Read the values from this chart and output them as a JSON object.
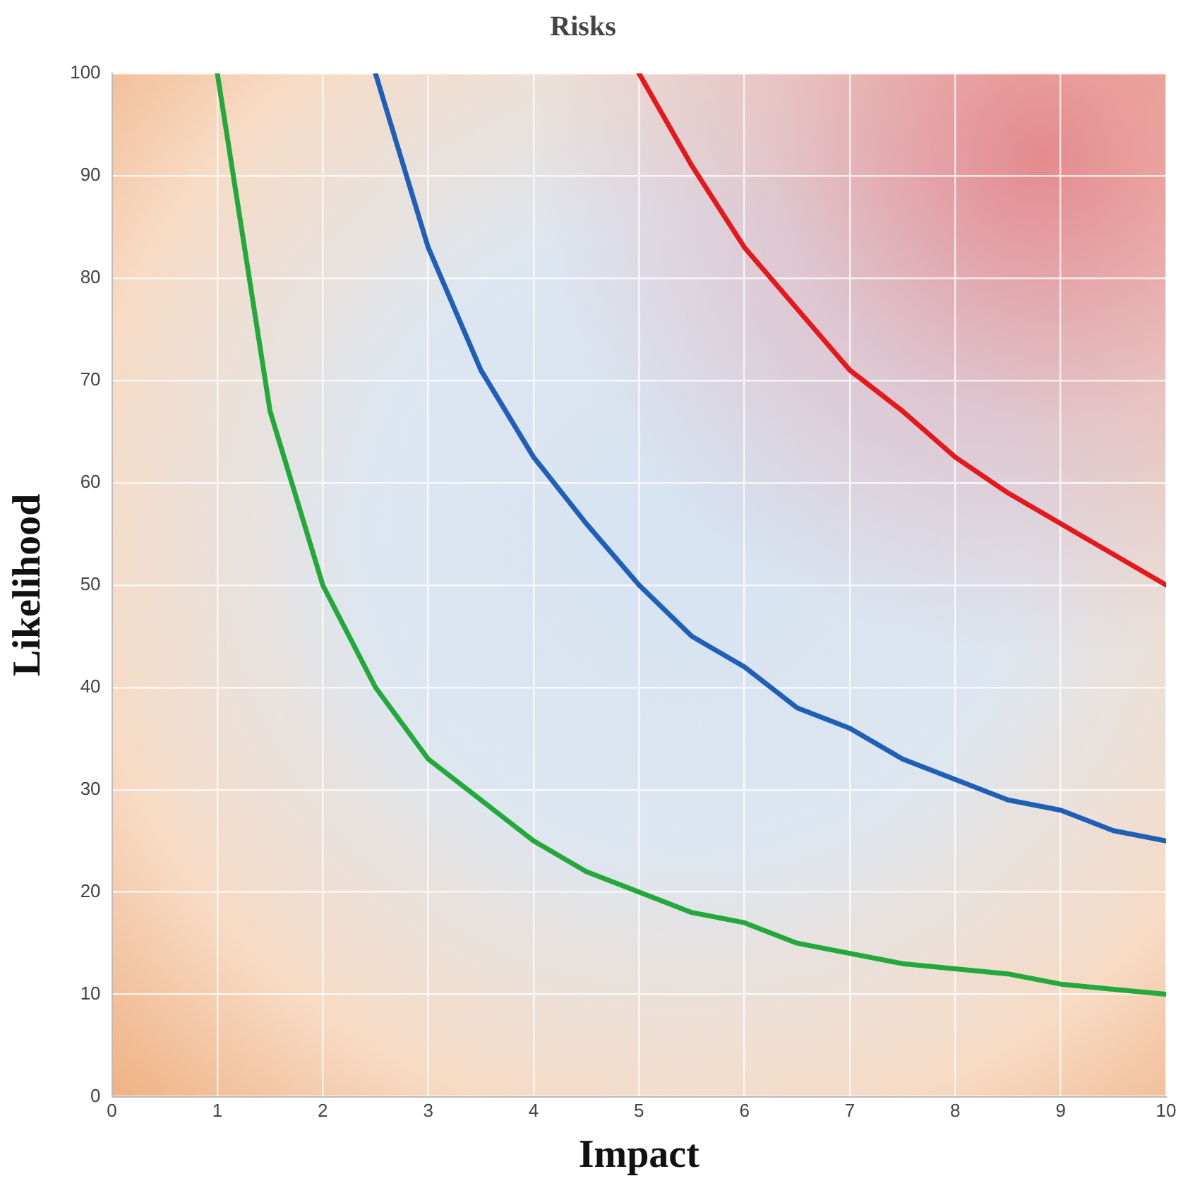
{
  "chart_data": {
    "type": "line",
    "title": "Risks",
    "xlabel": "Impact",
    "ylabel": "Likelihood",
    "xlim": [
      0,
      10
    ],
    "ylim": [
      0,
      100
    ],
    "xticks": [
      0,
      1,
      2,
      3,
      4,
      5,
      6,
      7,
      8,
      9,
      10
    ],
    "yticks": [
      0,
      10,
      20,
      30,
      40,
      50,
      60,
      70,
      80,
      90,
      100
    ],
    "grid": true,
    "legend": false,
    "marker": "none",
    "line_style": "solid",
    "series": [
      {
        "color": "#23a83b",
        "x": [
          1,
          1.5,
          2,
          2.5,
          3,
          3.5,
          4,
          4.5,
          5,
          5.5,
          6,
          6.5,
          7,
          7.5,
          8,
          8.5,
          9,
          9.5,
          10
        ],
        "values": [
          100,
          67,
          50,
          40,
          33,
          29,
          25,
          22,
          20,
          18,
          17,
          15,
          14,
          13,
          12.5,
          12,
          11,
          10.5,
          10
        ]
      },
      {
        "color": "#1f5fb5",
        "x": [
          2.5,
          3,
          3.5,
          4,
          4.5,
          5,
          5.5,
          6,
          6.5,
          7,
          7.5,
          8,
          8.5,
          9,
          9.5,
          10
        ],
        "values": [
          100,
          83,
          71,
          62.5,
          56,
          50,
          45,
          42,
          38,
          36,
          33,
          31,
          29,
          28,
          26,
          25
        ]
      },
      {
        "color": "#e3191e",
        "x": [
          5,
          5.5,
          6,
          6.5,
          7,
          7.5,
          8,
          8.5,
          9,
          9.5,
          10
        ],
        "values": [
          100,
          91,
          83,
          77,
          71,
          67,
          62.5,
          59,
          56,
          53,
          50
        ]
      }
    ]
  }
}
